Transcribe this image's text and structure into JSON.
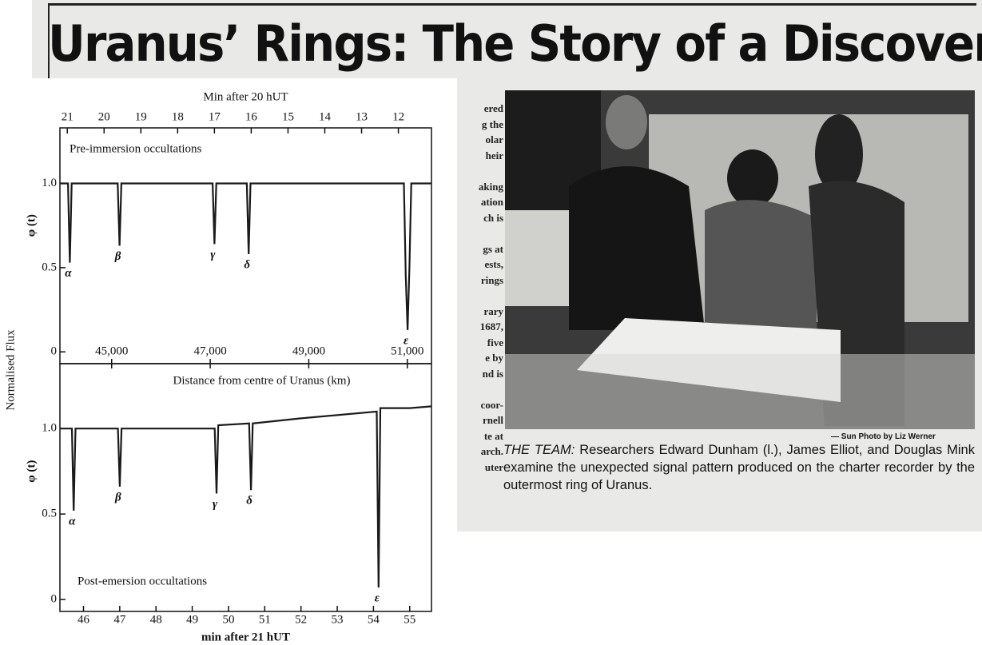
{
  "newspaper": {
    "headline": "Uranus’ Rings: The Story of a Discovery",
    "column_fragments": [
      "ered",
      "g the",
      "olar",
      "heir",
      "",
      "aking",
      "ation",
      "ch is",
      "",
      "gs at",
      "ests,",
      "rings",
      "",
      "rary",
      "1687,",
      "five",
      "e by",
      "nd is",
      "",
      "coor-",
      "rnell",
      "te at",
      "arch.",
      "uter"
    ],
    "photo_credit": "— Sun Photo by Liz Werner",
    "caption": {
      "lead": "THE TEAM:",
      "text": "Researchers Edward Dunham (l.), James Elliot, and Douglas Mink examine the unexpected signal pattern produced on the charter recorder by the outermost ring of Uranus."
    }
  },
  "figure_ylabel": "Normalised Flux",
  "chart_data": [
    {
      "type": "line",
      "title": "Pre-immersion occultations",
      "ylabel": "φ (t)",
      "xlabel": "Min after 20 hUT",
      "color": "#1a1a1a",
      "x": [
        21.2,
        20.98,
        20.93,
        20.88,
        19.63,
        19.58,
        19.53,
        17.05,
        17.0,
        16.95,
        16.12,
        16.07,
        16.02,
        11.85,
        11.8,
        11.75,
        11.7,
        11.65,
        11.1
      ],
      "values": [
        1.0,
        1.0,
        0.53,
        1.0,
        1.0,
        0.63,
        1.0,
        1.0,
        0.64,
        1.0,
        1.0,
        0.58,
        1.0,
        1.0,
        0.45,
        0.13,
        0.5,
        1.0,
        1.0
      ],
      "xlim": [
        21.2,
        11.1
      ],
      "xticks": [
        21,
        20,
        19,
        18,
        17,
        16,
        15,
        14,
        13,
        12
      ],
      "ylim": [
        -0.07,
        1.33
      ],
      "yticks": [
        0,
        0.5,
        {
          "value": 1,
          "label": "1.0"
        }
      ],
      "x2label": "Distance from centre of Uranus (km)",
      "x2lim": [
        43950,
        51490
      ],
      "x2ticks": [
        {
          "value": 45000,
          "label": "45,000"
        },
        {
          "value": 47000,
          "label": "47,000"
        },
        {
          "value": 49000,
          "label": "49,000"
        },
        {
          "value": 51000,
          "label": "51,000"
        }
      ],
      "annotations": [
        {
          "text": "α",
          "x": 20.93
        },
        {
          "text": "β",
          "x": 19.58
        },
        {
          "text": "γ",
          "x": 17.0
        },
        {
          "text": "δ",
          "x": 16.07
        },
        {
          "text": "ε",
          "x": 11.75
        }
      ]
    },
    {
      "type": "line",
      "title": "Post-emersion occultations",
      "ylabel": "φ (t)",
      "xlabel": "min after 21 hUT",
      "color": "#1a1a1a",
      "x": [
        45.35,
        45.68,
        45.73,
        45.78,
        46.95,
        47.0,
        47.05,
        49.0,
        49.62,
        49.67,
        49.72,
        50.57,
        50.62,
        50.67,
        52.0,
        54.09,
        54.14,
        54.19,
        55.0,
        55.6
      ],
      "values": [
        1.0,
        1.0,
        0.52,
        1.0,
        1.0,
        0.66,
        1.0,
        1.0,
        1.0,
        0.62,
        1.02,
        1.03,
        0.64,
        1.03,
        1.06,
        1.1,
        0.07,
        1.12,
        1.12,
        1.13
      ],
      "xlim": [
        45.35,
        55.6
      ],
      "xticks": [
        46,
        47,
        48,
        49,
        50,
        51,
        52,
        53,
        54,
        55
      ],
      "ylim": [
        -0.07,
        1.38
      ],
      "yticks": [
        0,
        0.5,
        {
          "value": 1,
          "label": "1.0"
        }
      ],
      "annotations": [
        {
          "text": "α",
          "x": 45.73
        },
        {
          "text": "β",
          "x": 47.0
        },
        {
          "text": "γ",
          "x": 49.67
        },
        {
          "text": "δ",
          "x": 50.62
        },
        {
          "text": "ε",
          "x": 54.14
        }
      ]
    }
  ]
}
